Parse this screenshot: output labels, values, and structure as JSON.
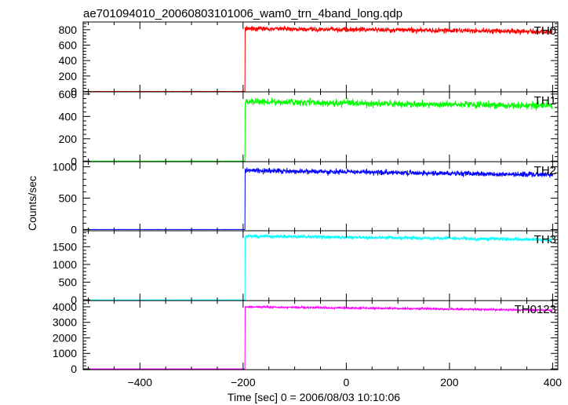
{
  "chart_data": {
    "type": "line",
    "title": "ae701094010_20060803101006_wam0_trn_4band_long.qdp",
    "xlabel": "Time [sec] 0 = 2006/08/03 10:10:06",
    "ylabel": "Counts/sec",
    "xlim": [
      -510,
      410
    ],
    "x_ticks": [
      -400,
      -200,
      0,
      200,
      400
    ],
    "x_tick_labels": [
      "−400",
      "−200",
      "0",
      "200",
      "400"
    ],
    "x_minor_step": 50,
    "grid": false,
    "panels": [
      {
        "name": "TH0",
        "color": "#ff0000",
        "ylim": [
          -5,
          900
        ],
        "y_ticks": [
          0,
          200,
          400,
          600,
          800
        ],
        "y_tick_labels": [
          "0",
          "200",
          "400",
          "600",
          "800"
        ],
        "baseline": 0,
        "step_time": -196,
        "peak": 815,
        "end": 775,
        "noise": 22
      },
      {
        "name": "TH1",
        "color": "#00ff00",
        "ylim": [
          -5,
          620
        ],
        "y_ticks": [
          0,
          200,
          400,
          600
        ],
        "y_tick_labels": [
          "0",
          "200",
          "400",
          "600"
        ],
        "baseline": 0,
        "step_time": -196,
        "peak": 530,
        "end": 495,
        "noise": 22
      },
      {
        "name": "TH2",
        "color": "#0000ff",
        "ylim": [
          -20,
          1080
        ],
        "y_ticks": [
          0,
          500,
          1000
        ],
        "y_tick_labels": [
          "0",
          "500",
          "1000"
        ],
        "baseline": 0,
        "step_time": -196,
        "peak": 940,
        "end": 870,
        "noise": 28
      },
      {
        "name": "TH3",
        "color": "#00ffff",
        "ylim": [
          -20,
          1950
        ],
        "y_ticks": [
          0,
          500,
          1000,
          1500
        ],
        "y_tick_labels": [
          "0",
          "500",
          "1000",
          "1500"
        ],
        "baseline": 0,
        "step_time": -196,
        "peak": 1800,
        "end": 1700,
        "noise": 35
      },
      {
        "name": "TH0123",
        "color": "#ff00ff",
        "ylim": [
          -50,
          4400
        ],
        "y_ticks": [
          0,
          1000,
          2000,
          3000,
          4000
        ],
        "y_tick_labels": [
          "0",
          "1000",
          "2000",
          "3000",
          "4000"
        ],
        "baseline": 0,
        "step_time": -196,
        "peak": 4000,
        "end": 3780,
        "noise": 45
      }
    ]
  }
}
